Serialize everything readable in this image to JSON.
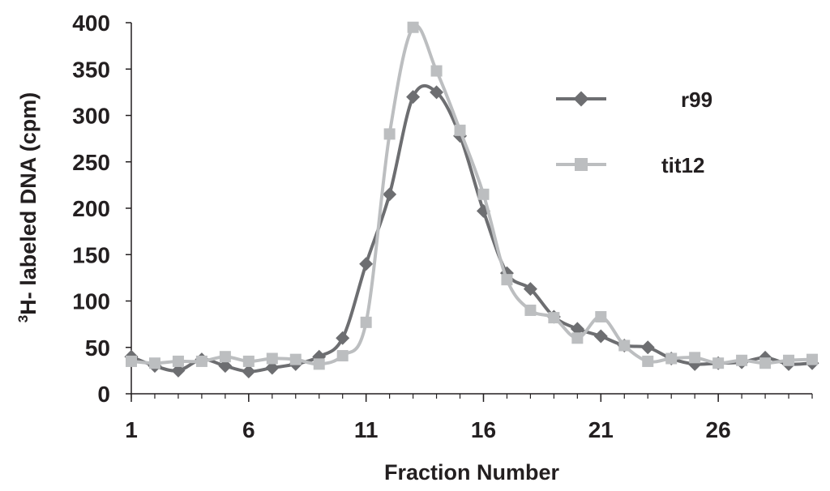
{
  "chart_data": {
    "type": "line",
    "xlabel": "Fraction Number",
    "ylabel_sup": "3",
    "ylabel_main": "H- labeled DNA (cpm)",
    "xlim": [
      1,
      30
    ],
    "ylim": [
      0,
      400
    ],
    "xticks": [
      1,
      6,
      11,
      16,
      21,
      26
    ],
    "yticks": [
      0,
      50,
      100,
      150,
      200,
      250,
      300,
      350,
      400
    ],
    "grid": false,
    "legend_position": "right",
    "x": [
      1,
      2,
      3,
      4,
      5,
      6,
      7,
      8,
      9,
      10,
      11,
      12,
      13,
      14,
      15,
      16,
      17,
      18,
      19,
      20,
      21,
      22,
      23,
      24,
      25,
      26,
      27,
      28,
      29,
      30
    ],
    "series": [
      {
        "name": "r99",
        "color": "#6d6e71",
        "marker": "diamond",
        "values": [
          40,
          30,
          25,
          37,
          30,
          24,
          28,
          32,
          40,
          60,
          140,
          215,
          320,
          325,
          278,
          197,
          130,
          113,
          83,
          70,
          62,
          52,
          50,
          38,
          32,
          33,
          34,
          39,
          32,
          33
        ]
      },
      {
        "name": "tit12",
        "color": "#bcbec0",
        "marker": "square",
        "values": [
          35,
          33,
          35,
          35,
          40,
          35,
          38,
          37,
          32,
          41,
          77,
          280,
          395,
          348,
          284,
          215,
          123,
          90,
          82,
          60,
          83,
          52,
          35,
          38,
          39,
          33,
          36,
          33,
          36,
          37
        ]
      }
    ]
  }
}
